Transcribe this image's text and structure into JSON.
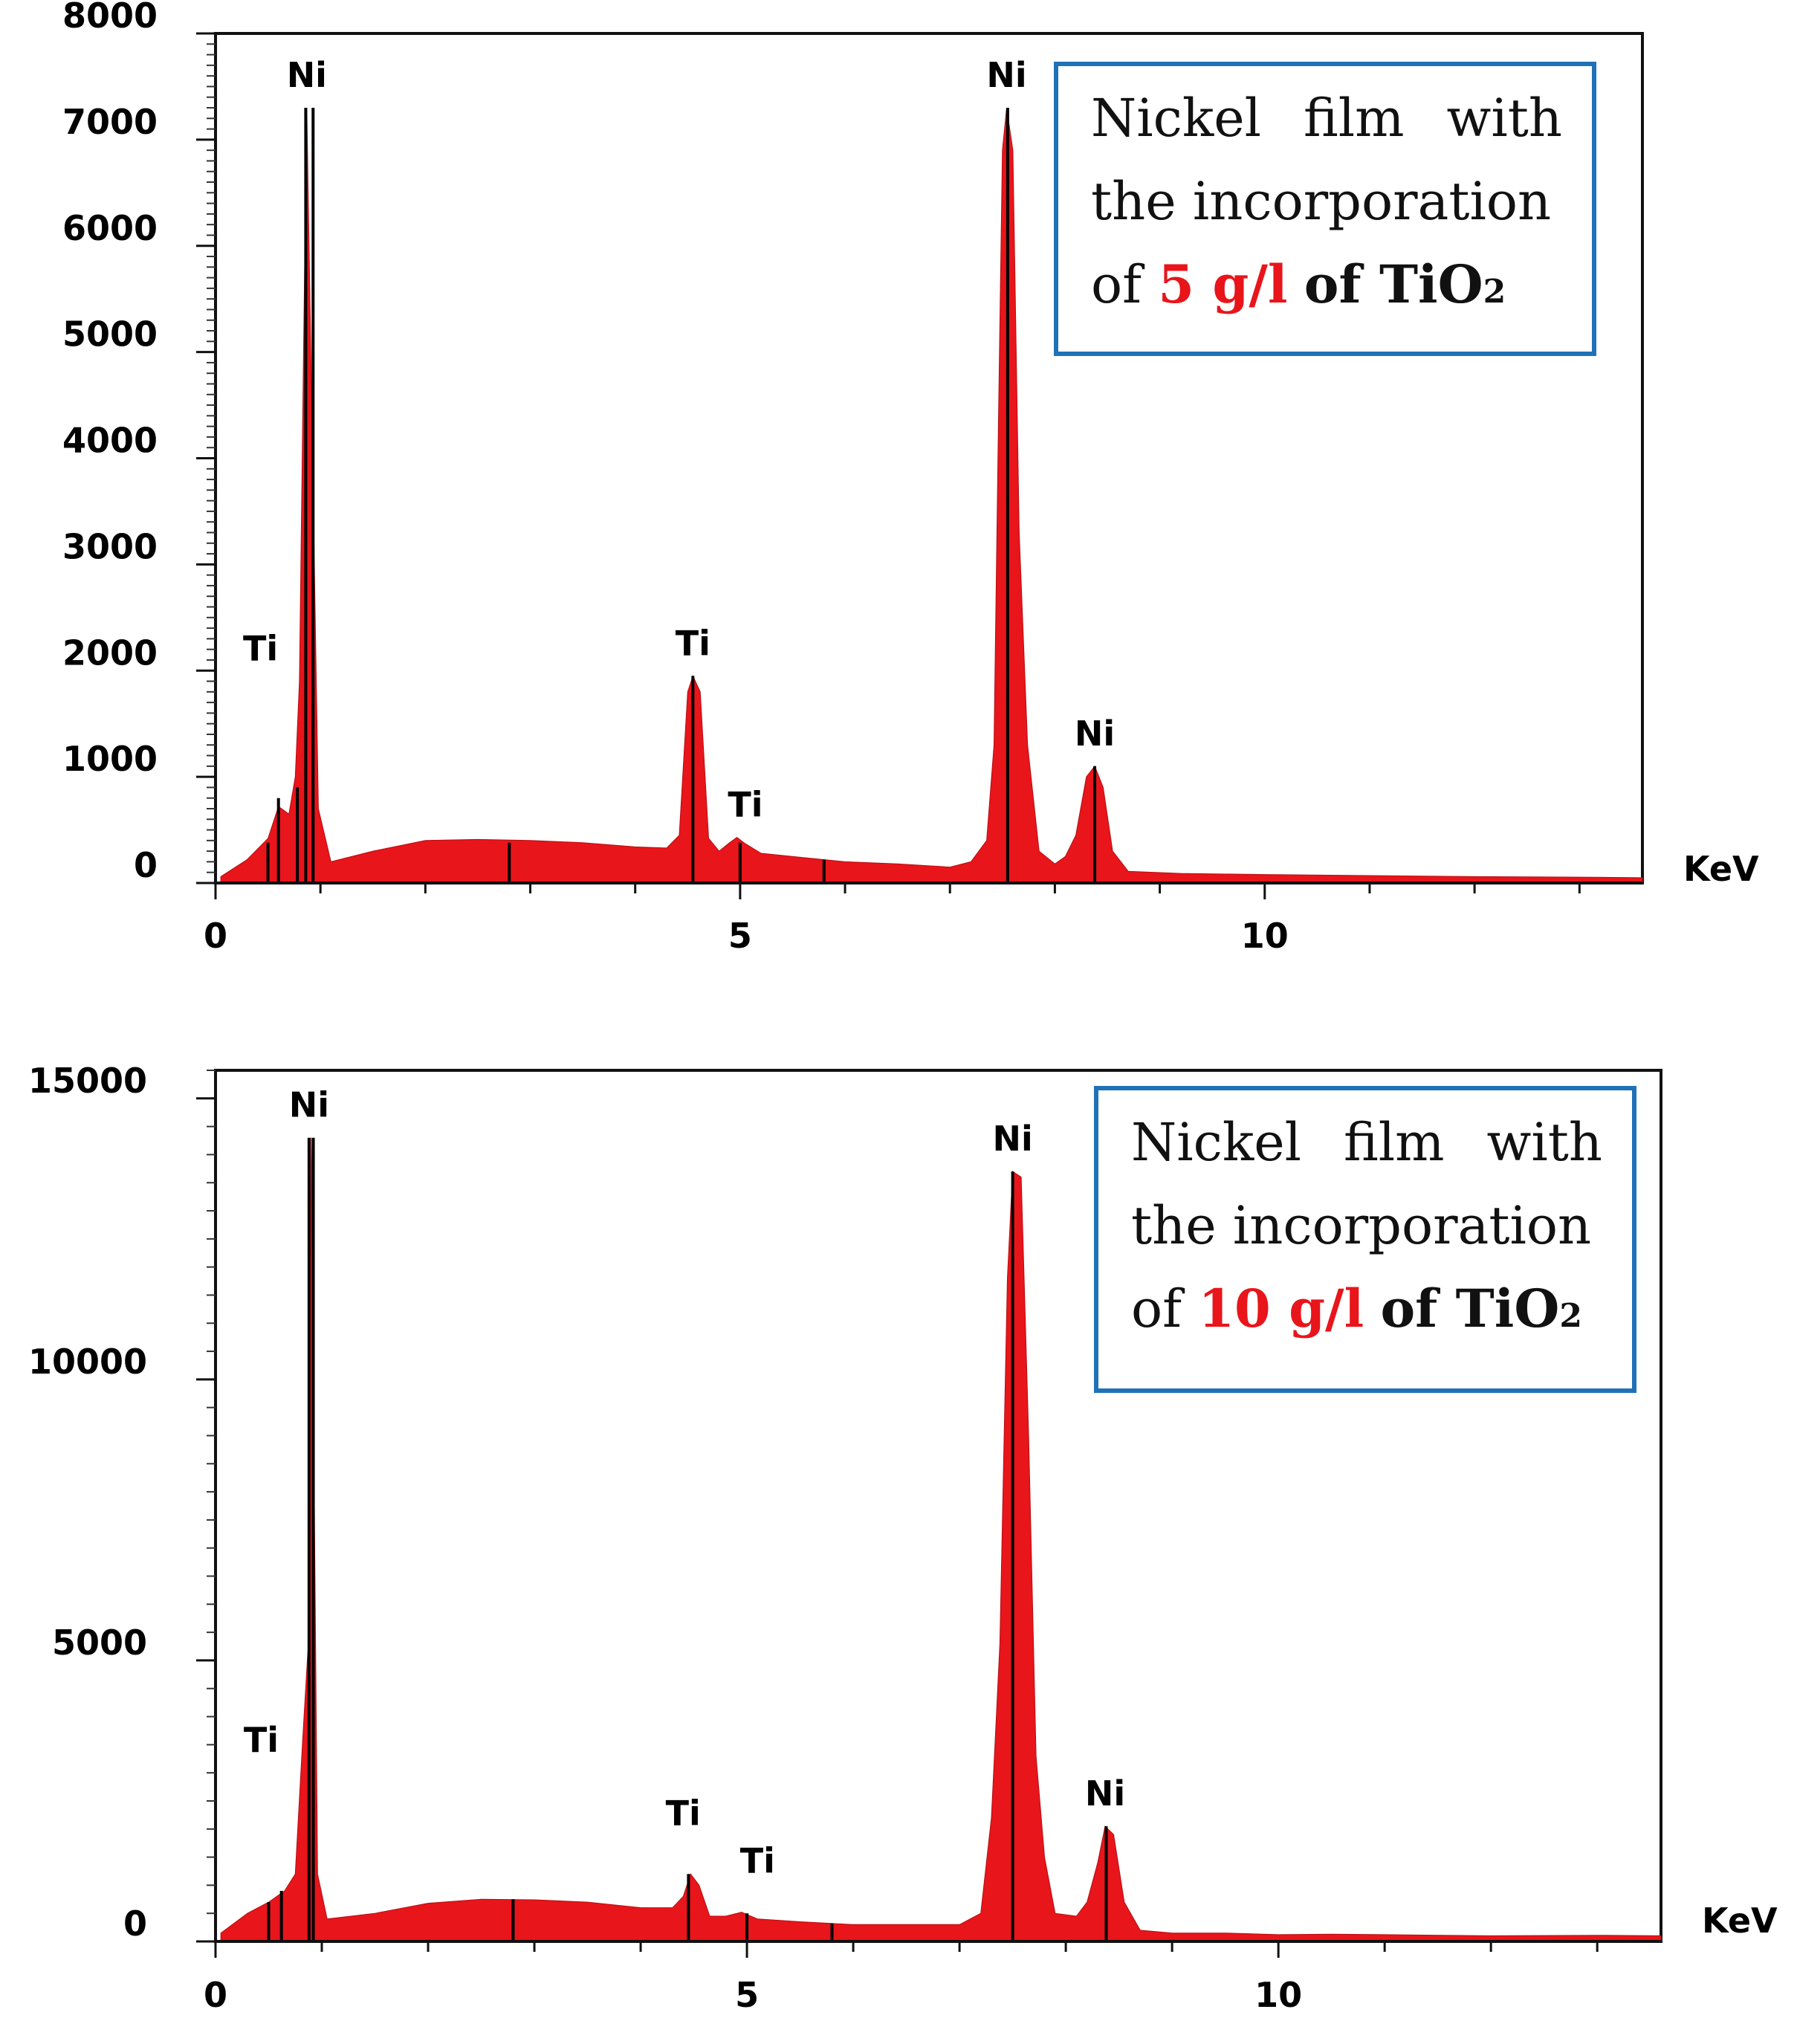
{
  "chart_data": [
    {
      "type": "area",
      "xlabel": "KeV",
      "xlim": [
        0,
        13.6
      ],
      "ylim": [
        0,
        8000
      ],
      "x_ticks": [
        "0",
        "5",
        "10"
      ],
      "y_ticks": [
        "0",
        "1000",
        "2000",
        "3000",
        "4000",
        "5000",
        "6000",
        "7000",
        "8000"
      ],
      "legend": {
        "l1": [
          "Nickel",
          "film",
          "with"
        ],
        "l2": "the incorporation",
        "l3_pre": "of",
        "l3_red": "5 g/l",
        "l3_post": "of TiO",
        "l3_sub": "2"
      },
      "color": "#e8151b",
      "spectrum": [
        [
          0.05,
          60
        ],
        [
          0.3,
          220
        ],
        [
          0.5,
          420
        ],
        [
          0.6,
          720
        ],
        [
          0.7,
          650
        ],
        [
          0.76,
          1000
        ],
        [
          0.8,
          1900
        ],
        [
          0.84,
          5100
        ],
        [
          0.87,
          7300
        ],
        [
          0.92,
          4300
        ],
        [
          0.98,
          700
        ],
        [
          1.1,
          200
        ],
        [
          1.5,
          300
        ],
        [
          2.0,
          400
        ],
        [
          2.5,
          410
        ],
        [
          3.0,
          400
        ],
        [
          3.5,
          380
        ],
        [
          4.0,
          340
        ],
        [
          4.3,
          330
        ],
        [
          4.42,
          450
        ],
        [
          4.5,
          1800
        ],
        [
          4.55,
          1950
        ],
        [
          4.62,
          1800
        ],
        [
          4.7,
          420
        ],
        [
          4.8,
          300
        ],
        [
          4.9,
          380
        ],
        [
          4.97,
          430
        ],
        [
          5.05,
          370
        ],
        [
          5.2,
          280
        ],
        [
          5.6,
          240
        ],
        [
          6.0,
          200
        ],
        [
          6.5,
          180
        ],
        [
          7.0,
          150
        ],
        [
          7.2,
          200
        ],
        [
          7.35,
          400
        ],
        [
          7.42,
          1300
        ],
        [
          7.46,
          4200
        ],
        [
          7.5,
          6900
        ],
        [
          7.54,
          7300
        ],
        [
          7.6,
          6900
        ],
        [
          7.66,
          3300
        ],
        [
          7.74,
          1300
        ],
        [
          7.85,
          300
        ],
        [
          8.0,
          180
        ],
        [
          8.1,
          250
        ],
        [
          8.2,
          450
        ],
        [
          8.3,
          1000
        ],
        [
          8.38,
          1100
        ],
        [
          8.46,
          900
        ],
        [
          8.55,
          300
        ],
        [
          8.7,
          110
        ],
        [
          9.2,
          90
        ],
        [
          10,
          80
        ],
        [
          11,
          70
        ],
        [
          12,
          60
        ],
        [
          13,
          55
        ],
        [
          13.6,
          50
        ]
      ],
      "markers": [
        [
          0.5,
          380
        ],
        [
          0.6,
          800
        ],
        [
          0.78,
          900
        ],
        [
          0.86,
          7300
        ],
        [
          0.93,
          7300
        ],
        [
          2.8,
          380
        ],
        [
          4.55,
          1950
        ],
        [
          5.0,
          380
        ],
        [
          5.8,
          220
        ],
        [
          7.55,
          7300
        ],
        [
          8.38,
          1100
        ]
      ],
      "peak_labels": [
        {
          "text": "Ni",
          "x": 0.87,
          "y": 7300
        },
        {
          "text": "Ti",
          "x": 0.5,
          "y": 1900
        },
        {
          "text": "Ti",
          "x": 4.55,
          "y": 1950
        },
        {
          "text": "Ti",
          "x": 5.05,
          "y": 430
        },
        {
          "text": "Ni",
          "x": 7.54,
          "y": 7300
        },
        {
          "text": "Ni",
          "x": 8.38,
          "y": 1100
        }
      ]
    },
    {
      "type": "area",
      "xlabel": "KeV",
      "xlim": [
        0,
        13.6
      ],
      "ylim": [
        0,
        15500
      ],
      "x_ticks": [
        "0",
        "5",
        "10"
      ],
      "y_ticks": [
        "0",
        "5000",
        "10000",
        "15000"
      ],
      "legend": {
        "l1": [
          "Nickel",
          "film",
          "with"
        ],
        "l2": "the incorporation",
        "l3_pre": "of",
        "l3_red": "10 g/l",
        "l3_post": "of TiO",
        "l3_sub": "2"
      },
      "color": "#e8151b",
      "spectrum": [
        [
          0.05,
          150
        ],
        [
          0.3,
          500
        ],
        [
          0.5,
          700
        ],
        [
          0.65,
          900
        ],
        [
          0.75,
          1200
        ],
        [
          0.82,
          3600
        ],
        [
          0.87,
          5200
        ],
        [
          0.9,
          14300
        ],
        [
          0.96,
          1200
        ],
        [
          1.05,
          400
        ],
        [
          1.5,
          500
        ],
        [
          2.0,
          680
        ],
        [
          2.5,
          750
        ],
        [
          3.0,
          740
        ],
        [
          3.5,
          700
        ],
        [
          4.0,
          600
        ],
        [
          4.3,
          600
        ],
        [
          4.4,
          800
        ],
        [
          4.47,
          1200
        ],
        [
          4.55,
          1000
        ],
        [
          4.65,
          450
        ],
        [
          4.8,
          450
        ],
        [
          4.95,
          520
        ],
        [
          5.1,
          400
        ],
        [
          5.5,
          350
        ],
        [
          6.0,
          300
        ],
        [
          6.5,
          300
        ],
        [
          7.0,
          300
        ],
        [
          7.2,
          500
        ],
        [
          7.3,
          2200
        ],
        [
          7.38,
          5300
        ],
        [
          7.45,
          11800
        ],
        [
          7.5,
          13700
        ],
        [
          7.58,
          13600
        ],
        [
          7.65,
          9000
        ],
        [
          7.72,
          3300
        ],
        [
          7.8,
          1500
        ],
        [
          7.9,
          500
        ],
        [
          8.1,
          450
        ],
        [
          8.2,
          700
        ],
        [
          8.3,
          1400
        ],
        [
          8.37,
          2050
        ],
        [
          8.45,
          1900
        ],
        [
          8.55,
          700
        ],
        [
          8.7,
          200
        ],
        [
          9.0,
          150
        ],
        [
          9.5,
          150
        ],
        [
          10,
          120
        ],
        [
          10.5,
          130
        ],
        [
          11,
          120
        ],
        [
          12,
          100
        ],
        [
          13,
          110
        ],
        [
          13.6,
          100
        ]
      ],
      "markers": [
        [
          0.5,
          700
        ],
        [
          0.62,
          900
        ],
        [
          0.88,
          14300
        ],
        [
          0.92,
          14300
        ],
        [
          2.8,
          750
        ],
        [
          4.45,
          1200
        ],
        [
          5.0,
          500
        ],
        [
          5.8,
          320
        ],
        [
          7.5,
          13700
        ],
        [
          8.38,
          2050
        ]
      ],
      "peak_labels": [
        {
          "text": "Ni",
          "x": 0.88,
          "y": 14300
        },
        {
          "text": "Ti",
          "x": 0.5,
          "y": 3000
        },
        {
          "text": "Ti",
          "x": 4.4,
          "y": 1700
        },
        {
          "text": "Ti",
          "x": 5.1,
          "y": 850
        },
        {
          "text": "Ni",
          "x": 7.5,
          "y": 13700
        },
        {
          "text": "Ni",
          "x": 8.37,
          "y": 2050
        }
      ]
    }
  ]
}
